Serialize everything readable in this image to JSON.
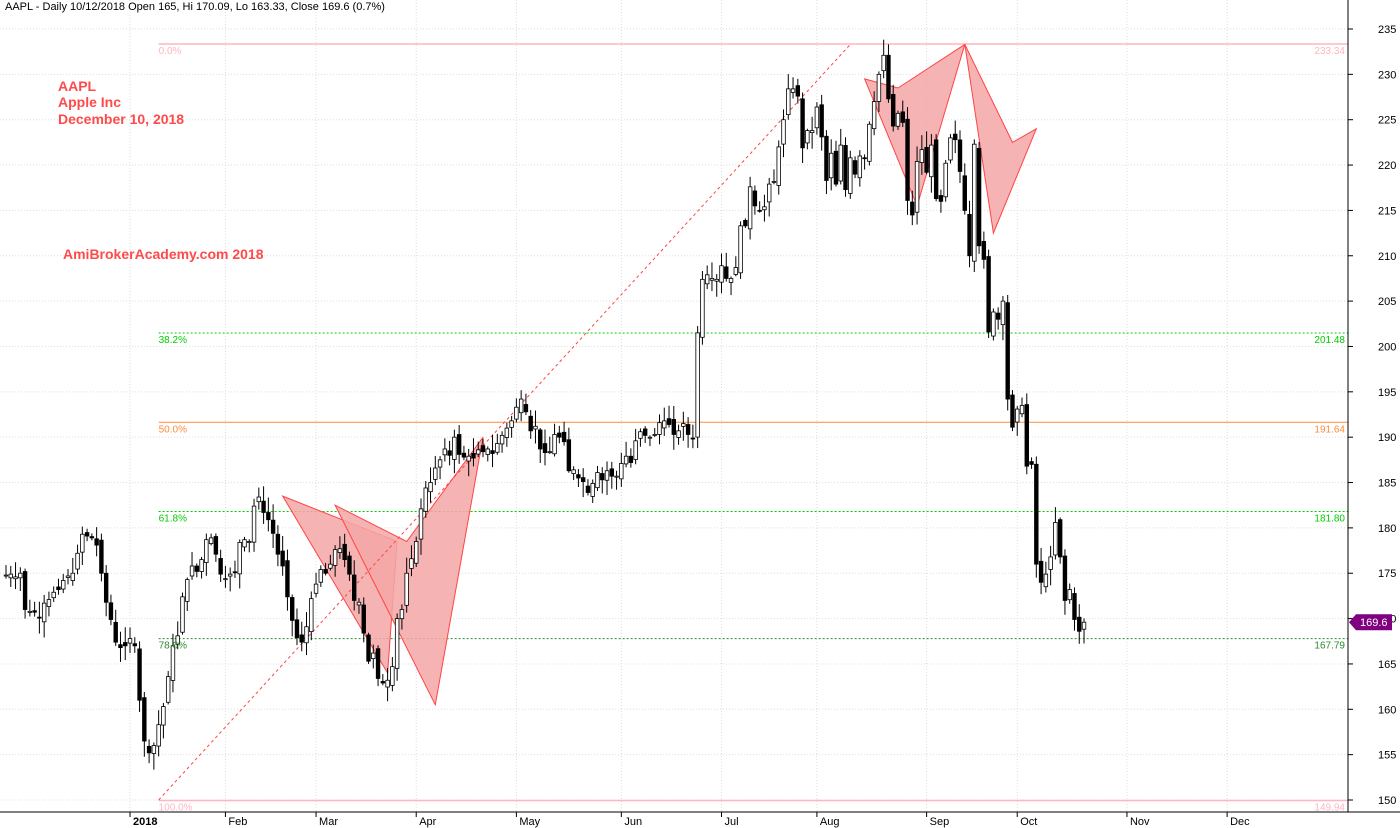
{
  "header": "AAPL - Daily 10/12/2018 Open 165, Hi 170.09, Lo 163.33, Close 169.6 (0.7%)",
  "annotations": {
    "ticker": "AAPL",
    "company": "Apple Inc",
    "date": "December 10, 2018",
    "watermark": "AmiBrokerAcademy.com  2018"
  },
  "last_price_label": "169.6",
  "colors": {
    "up_candle": "#ffffff",
    "down_candle": "#000000",
    "fib_top_bottom": "#ffb6c1",
    "fib_38_61": "#00cc00",
    "fib_50": "#ff8c3a",
    "fib_786": "#2e8b2e",
    "pattern_fill": "#f4a6a6",
    "pattern_stroke": "#ff4444",
    "trend_line": "#ff4444",
    "last_price_badge": "#800080",
    "annotation_text": "#ff4a4a"
  },
  "chart_data": {
    "type": "candlestick",
    "title": "AAPL - Daily",
    "ylim": [
      148.5,
      236.5
    ],
    "yticks": [
      150,
      155,
      160,
      165,
      170,
      175,
      180,
      185,
      190,
      195,
      200,
      205,
      210,
      215,
      220,
      225,
      230,
      235
    ],
    "x_month_labels": [
      {
        "label": "2018",
        "bold": true,
        "index": 26
      },
      {
        "label": "Feb",
        "bold": false,
        "index": 46
      },
      {
        "label": "Mar",
        "bold": false,
        "index": 65
      },
      {
        "label": "Apr",
        "bold": false,
        "index": 86
      },
      {
        "label": "May",
        "bold": false,
        "index": 107
      },
      {
        "label": "Jun",
        "bold": false,
        "index": 129
      },
      {
        "label": "Jul",
        "bold": false,
        "index": 150
      },
      {
        "label": "Aug",
        "bold": false,
        "index": 170
      },
      {
        "label": "Sep",
        "bold": false,
        "index": 193
      },
      {
        "label": "Oct",
        "bold": false,
        "index": 212
      },
      {
        "label": "Nov",
        "bold": false,
        "index": 235
      },
      {
        "label": "Dec",
        "bold": false,
        "index": 256
      }
    ],
    "fibonacci": [
      {
        "pct": "0.0%",
        "price": 233.34,
        "price_label": "233.34",
        "style": "top"
      },
      {
        "pct": "38.2%",
        "price": 201.48,
        "price_label": "201.48",
        "style": "l38"
      },
      {
        "pct": "50.0%",
        "price": 191.64,
        "price_label": "191.64",
        "style": "l50"
      },
      {
        "pct": "61.8%",
        "price": 181.8,
        "price_label": "181.80",
        "style": "l61"
      },
      {
        "pct": "78.6%",
        "price": 167.79,
        "price_label": "167.79",
        "style": "l786"
      },
      {
        "pct": "100.0%",
        "price": 149.94,
        "price_label": "149.94",
        "style": "bottom"
      }
    ],
    "fib_range_start_index": 32,
    "trend_line": {
      "from": {
        "index": 32,
        "price": 150
      },
      "to": {
        "index": 177,
        "price": 233.3
      }
    },
    "harmonic_patterns": [
      [
        {
          "index": 58,
          "price": 183.5
        },
        {
          "index": 82,
          "price": 178.5
        },
        {
          "index": 80,
          "price": 164.0
        },
        {
          "index": 58,
          "price": 183.5
        }
      ],
      [
        {
          "index": 69,
          "price": 182.5
        },
        {
          "index": 84,
          "price": 178.5
        },
        {
          "index": 100,
          "price": 190.0
        },
        {
          "index": 90,
          "price": 160.5
        },
        {
          "index": 69,
          "price": 182.5
        }
      ],
      [
        {
          "index": 180,
          "price": 229.5
        },
        {
          "index": 187,
          "price": 228.5
        },
        {
          "index": 201,
          "price": 233.3
        },
        {
          "index": 191,
          "price": 215.5
        },
        {
          "index": 180,
          "price": 229.5
        }
      ],
      [
        {
          "index": 201,
          "price": 233.3
        },
        {
          "index": 211,
          "price": 222.5
        },
        {
          "index": 216,
          "price": 224.0
        },
        {
          "index": 207,
          "price": 212.5
        },
        {
          "index": 201,
          "price": 233.3
        }
      ]
    ],
    "last_index": 248,
    "series": [
      {
        "name": "AAPL",
        "values": [
          174.8,
          174.9,
          174.6,
          175.0,
          171.0,
          170.8,
          170.7,
          170.1,
          171.7,
          172.1,
          172.9,
          173.2,
          174.2,
          174.7,
          175.0,
          177.2,
          179.3,
          179.1,
          178.9,
          178.1,
          175.0,
          171.8,
          169.9,
          167.4,
          166.8,
          167.0,
          167.8,
          167.0,
          161.0,
          156.5,
          155.2,
          156.0,
          158.3,
          160.3,
          163.6,
          167.0,
          168.1,
          172.4,
          174.3,
          175.8,
          175.2,
          176.5,
          178.7,
          178.9,
          177.1,
          174.9,
          174.4,
          174.9,
          175.1,
          178.4,
          178.7,
          178.5,
          182.4,
          183.4,
          181.7,
          180.9,
          179.4,
          177.1,
          175.8,
          172.4,
          169.8,
          167.9,
          167.4,
          169.1,
          172.2,
          173.8,
          175.4,
          175.0,
          176.0,
          177.6,
          177.7,
          176.5,
          174.9,
          172.0,
          171.8,
          168.4,
          165.3,
          166.2,
          163.4,
          162.9,
          163.2,
          164.7,
          170.0,
          171.0,
          175.0,
          176.6,
          178.5,
          182.1,
          184.4,
          185.0,
          186.6,
          187.5,
          188.7,
          188.0,
          190.0,
          188.1,
          187.8,
          187.9,
          187.7,
          188.6,
          188.4,
          188.7,
          188.2,
          189.3,
          190.2,
          191.0,
          191.8,
          193.3,
          194.2,
          192.8,
          190.7,
          191.2,
          188.7,
          188.3,
          188.4,
          190.3,
          190.0,
          189.5,
          186.3,
          186.4,
          185.5,
          185.1,
          183.9,
          184.9,
          186.1,
          185.3,
          186.3,
          185.7,
          185.7,
          187.1,
          187.9,
          187.2,
          189.6,
          190.6,
          190.2,
          190.0,
          190.3,
          191.6,
          191.8,
          191.4,
          190.3,
          190.7,
          191.5,
          190.3,
          189.9,
          201.5,
          207.4,
          207.9,
          207.5,
          207.4,
          208.9,
          207.5,
          207.5,
          208.7,
          213.3,
          213.3,
          217.6,
          215.5,
          215.0,
          215.4,
          217.9,
          218.2,
          222.0,
          225.0,
          228.4,
          228.4,
          227.6,
          221.9,
          223.8,
          223.8,
          226.4,
          223.1,
          218.3,
          221.3,
          217.9,
          222.2,
          217.3,
          220.8,
          219.0,
          221.0,
          220.8,
          224.5,
          227.0,
          230.0,
          232.1,
          227.3,
          224.3,
          225.7,
          224.7,
          216.1,
          214.5,
          220.4,
          221.7,
          219.2,
          222.2,
          216.3,
          216.0,
          220.2,
          223.0,
          222.8,
          219.3,
          215.0,
          210.0,
          222.3,
          211.1,
          209.6,
          201.6,
          203.8,
          203.0,
          205.0,
          194.2,
          191.1,
          193.1,
          193.5,
          186.8,
          187.0,
          176.0,
          174.0,
          174.9,
          176.8,
          180.6,
          176.8,
          172.0,
          173.2,
          169.9,
          168.6,
          169.6
        ]
      }
    ]
  }
}
